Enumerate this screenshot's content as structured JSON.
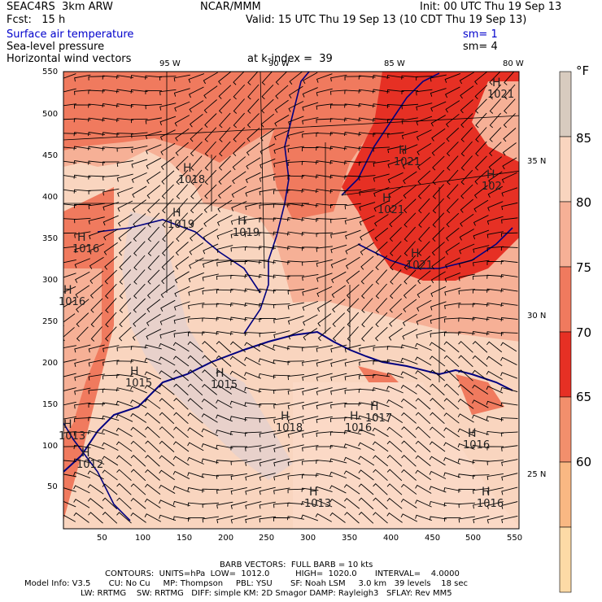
{
  "header": {
    "left1": "SEAC4RS  3km ARW",
    "left2": "Fcst:   15 h",
    "center1": "NCAR/MMM",
    "right1": "Init: 00 UTC Thu 19 Sep 13",
    "right2": "Valid: 15 UTC Thu 19 Sep 13 (10 CDT Thu 19 Sep 13)"
  },
  "fields": [
    {
      "label": "Surface air temperature",
      "sm": "sm= 1",
      "color": "#0000cc"
    },
    {
      "label": "Sea-level pressure",
      "sm": "sm= 4",
      "color": "#000000"
    },
    {
      "label": "Horizontal wind vectors",
      "extra": "at k-index =  39",
      "color": "#000000"
    }
  ],
  "map": {
    "lon_labels": [
      "95 W",
      "90 W",
      "85 W",
      "80 W"
    ],
    "lat_labels": [
      "35 N",
      "30 N",
      "25 N"
    ],
    "x_ticks": [
      "50",
      "100",
      "150",
      "200",
      "250",
      "300",
      "350",
      "400",
      "450",
      "500",
      "550"
    ],
    "y_ticks": [
      "550",
      "500",
      "450",
      "400",
      "350",
      "300",
      "250",
      "200",
      "150",
      "100",
      "50"
    ],
    "highs": [
      {
        "label": "H",
        "value": "1021"
      },
      {
        "label": "H",
        "value": "1021"
      },
      {
        "label": "H",
        "value": "1021"
      },
      {
        "label": "H",
        "value": "1021"
      },
      {
        "label": "H",
        "value": "102"
      },
      {
        "label": "H",
        "value": "1018"
      },
      {
        "label": "H",
        "value": "1019"
      },
      {
        "label": "H",
        "value": "1019"
      },
      {
        "label": "H",
        "value": "1016"
      },
      {
        "label": "H",
        "value": "1016"
      },
      {
        "label": "H",
        "value": "1015"
      },
      {
        "label": "H",
        "value": "1015"
      },
      {
        "label": "H",
        "value": "1016"
      },
      {
        "label": "H",
        "value": "1017"
      },
      {
        "label": "H",
        "value": "1018"
      },
      {
        "label": "H",
        "value": "1016"
      },
      {
        "label": "H",
        "value": "1013"
      },
      {
        "label": "H",
        "value": "1012"
      },
      {
        "label": "H",
        "value": "1013"
      },
      {
        "label": "H",
        "value": "1016"
      }
    ]
  },
  "colorbar": {
    "unit": "°F",
    "levels": [
      "85",
      "80",
      "75",
      "70",
      "65",
      "60"
    ],
    "colors": [
      "#d8cbbf",
      "#f9d5bf",
      "#f6b096",
      "#f07a5e",
      "#e63024",
      "#f28f6c",
      "#f9b883",
      "#fddaa6"
    ]
  },
  "footer": {
    "barb": "BARB VECTORS:  FULL BARB = 10 kts",
    "contours": "CONTOURS:  UNITS=hPa  LOW=  1012.0          HIGH=  1020.0       INTERVAL=    4.0000",
    "model": "Model Info: V3.5       CU: No Cu     MP: Thompson     PBL: YSU       SF: Noah LSM     3.0 km   39 levels    18 sec",
    "physics": "LW: RRTMG    SW: RRTMG   DIFF: simple KM: 2D Smagor DAMP: Rayleigh3   SFLAY: Rev MM5"
  }
}
